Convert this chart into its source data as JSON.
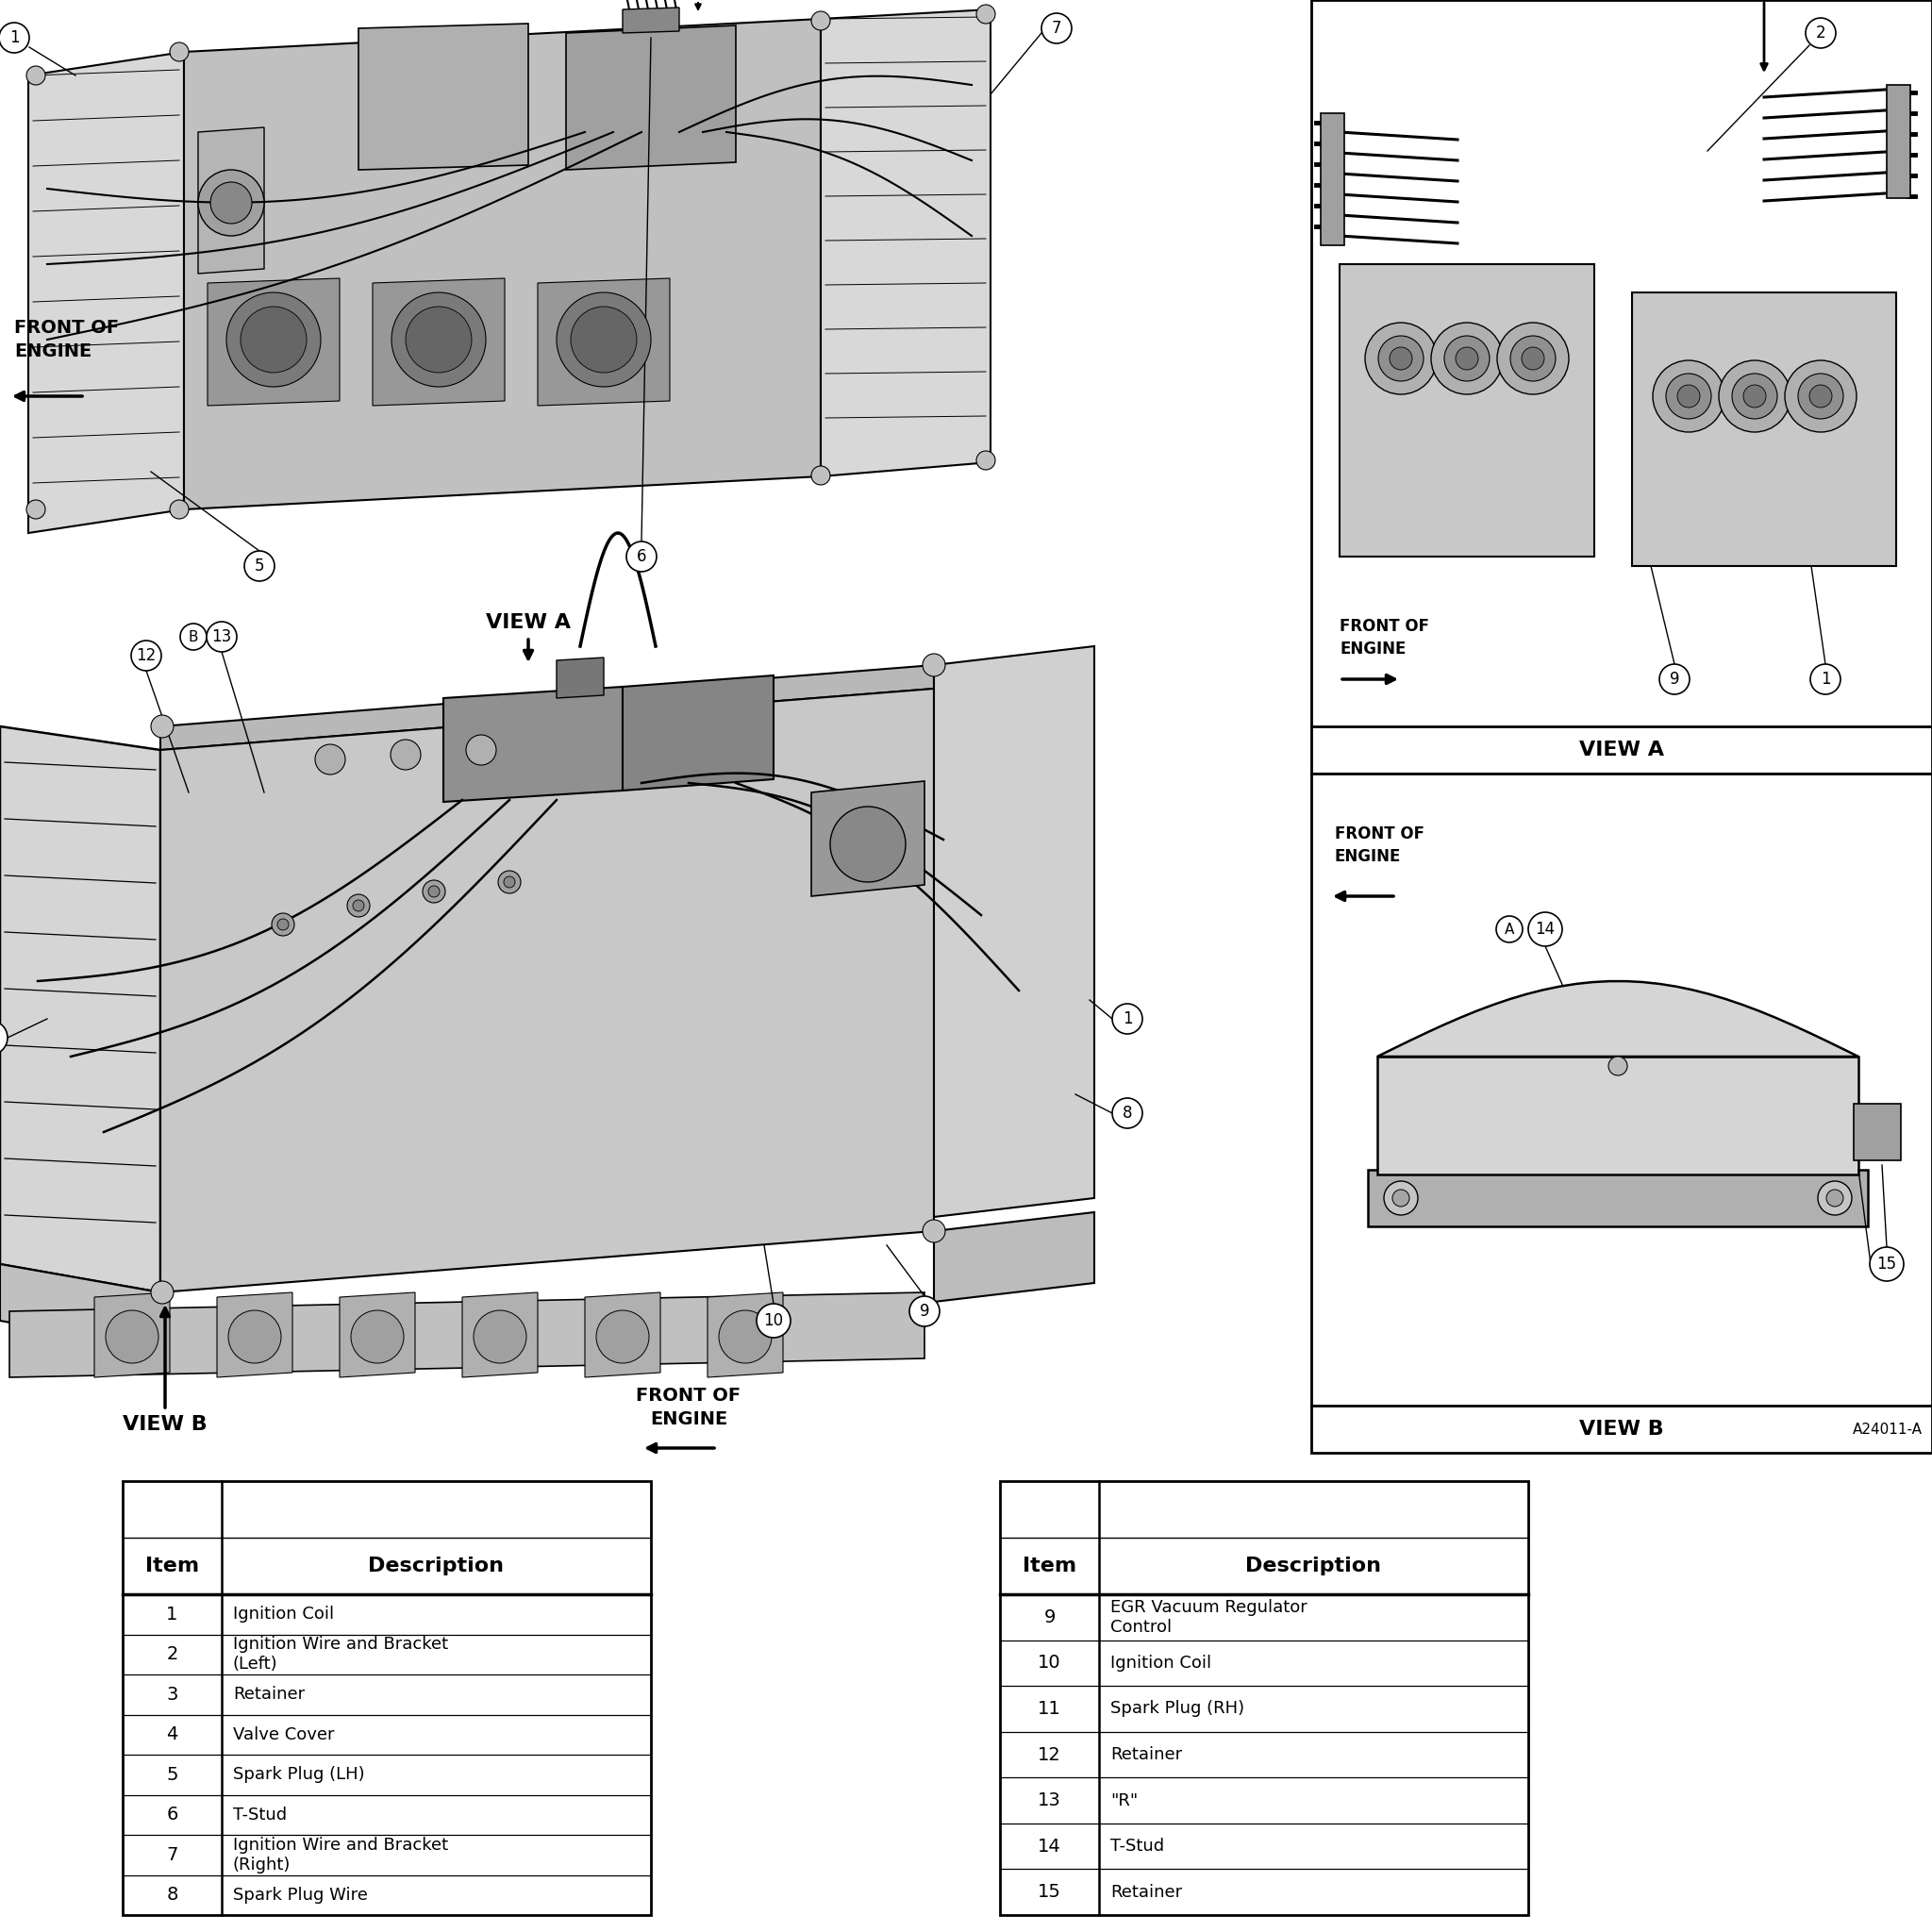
{
  "bg_color": "#ffffff",
  "table1_rows": [
    [
      "1",
      "Ignition Coil"
    ],
    [
      "2",
      "Ignition Wire and Bracket\n(Left)"
    ],
    [
      "3",
      "Retainer"
    ],
    [
      "4",
      "Valve Cover"
    ],
    [
      "5",
      "Spark Plug (LH)"
    ],
    [
      "6",
      "T-Stud"
    ],
    [
      "7",
      "Ignition Wire and Bracket\n(Right)"
    ],
    [
      "8",
      "Spark Plug Wire"
    ]
  ],
  "table2_rows": [
    [
      "9",
      "EGR Vacuum Regulator\nControl"
    ],
    [
      "10",
      "Ignition Coil"
    ],
    [
      "11",
      "Spark Plug (RH)"
    ],
    [
      "12",
      "Retainer"
    ],
    [
      "13",
      "\"R\""
    ],
    [
      "14",
      "T-Stud"
    ],
    [
      "15",
      "Retainer"
    ]
  ],
  "diagram_code": "A24011-A",
  "view_a_label": "VIEW A",
  "view_b_label": "VIEW B",
  "front_of_engine_text": "FRONT OF\nENGINE"
}
